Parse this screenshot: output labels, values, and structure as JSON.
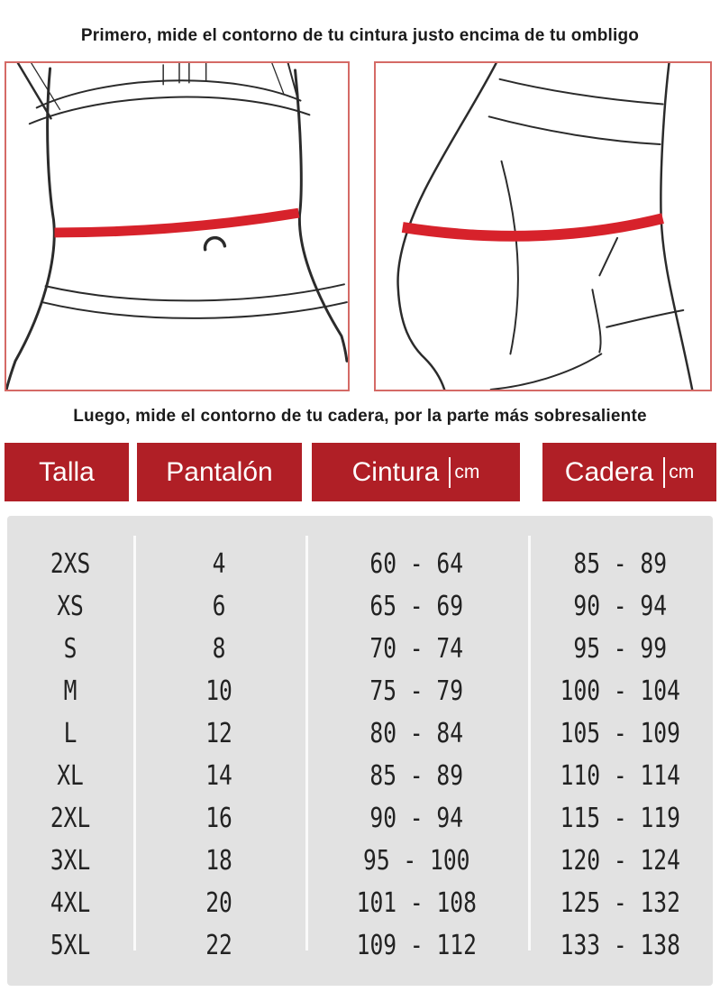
{
  "instructions": {
    "waist_step": "Primero, mide el contorno de tu cintura justo encima de tu ombligo",
    "hip_step": "Luego, mide el contorno de tu cadera, por la parte más sobresaliente"
  },
  "illustrations": {
    "left": "waist-measurement-figure",
    "right": "hip-measurement-figure"
  },
  "colors": {
    "header_red": "#b01f26",
    "tape_red": "#d7222b",
    "frame_border": "#d56a66",
    "table_bg": "#e2e2e2",
    "divider": "#fafafa",
    "text_dark": "#1b1b1b",
    "header_text": "#ffffff"
  },
  "size_table": {
    "headers": [
      {
        "label": "Talla",
        "unit": ""
      },
      {
        "label": "Pantalón",
        "unit": ""
      },
      {
        "label": "Cintura",
        "unit": "cm"
      },
      {
        "label": "Cadera",
        "unit": "cm"
      }
    ],
    "rows": [
      {
        "talla": "2XS",
        "pantalon": "4",
        "cintura": "60 - 64",
        "cadera": "85 - 89"
      },
      {
        "talla": "XS",
        "pantalon": "6",
        "cintura": "65 - 69",
        "cadera": "90 - 94"
      },
      {
        "talla": "S",
        "pantalon": "8",
        "cintura": "70 - 74",
        "cadera": "95 - 99"
      },
      {
        "talla": "M",
        "pantalon": "10",
        "cintura": "75 - 79",
        "cadera": "100 - 104"
      },
      {
        "talla": "L",
        "pantalon": "12",
        "cintura": "80 - 84",
        "cadera": "105 - 109"
      },
      {
        "talla": "XL",
        "pantalon": "14",
        "cintura": "85 - 89",
        "cadera": "110 - 114"
      },
      {
        "talla": "2XL",
        "pantalon": "16",
        "cintura": "90 - 94",
        "cadera": "115 - 119"
      },
      {
        "talla": "3XL",
        "pantalon": "18",
        "cintura": "95 - 100",
        "cadera": "120 - 124"
      },
      {
        "talla": "4XL",
        "pantalon": "20",
        "cintura": "101 - 108",
        "cadera": "125 - 132"
      },
      {
        "talla": "5XL",
        "pantalon": "22",
        "cintura": "109 - 112",
        "cadera": "133 - 138"
      }
    ]
  },
  "chart_data": {
    "type": "table",
    "columns": [
      "Talla",
      "Pantalón",
      "Cintura (cm)",
      "Cadera (cm)"
    ],
    "rows": [
      [
        "2XS",
        "4",
        "60 - 64",
        "85 - 89"
      ],
      [
        "XS",
        "6",
        "65 - 69",
        "90 - 94"
      ],
      [
        "S",
        "8",
        "70 - 74",
        "95 - 99"
      ],
      [
        "M",
        "10",
        "75 - 79",
        "100 - 104"
      ],
      [
        "L",
        "12",
        "80 - 84",
        "105 - 109"
      ],
      [
        "XL",
        "14",
        "85 - 89",
        "110 - 114"
      ],
      [
        "2XL",
        "16",
        "90 - 94",
        "115 - 119"
      ],
      [
        "3XL",
        "18",
        "95 - 100",
        "120 - 124"
      ],
      [
        "4XL",
        "20",
        "101 - 108",
        "125 - 132"
      ],
      [
        "5XL",
        "22",
        "109 - 112",
        "133 - 138"
      ]
    ]
  }
}
